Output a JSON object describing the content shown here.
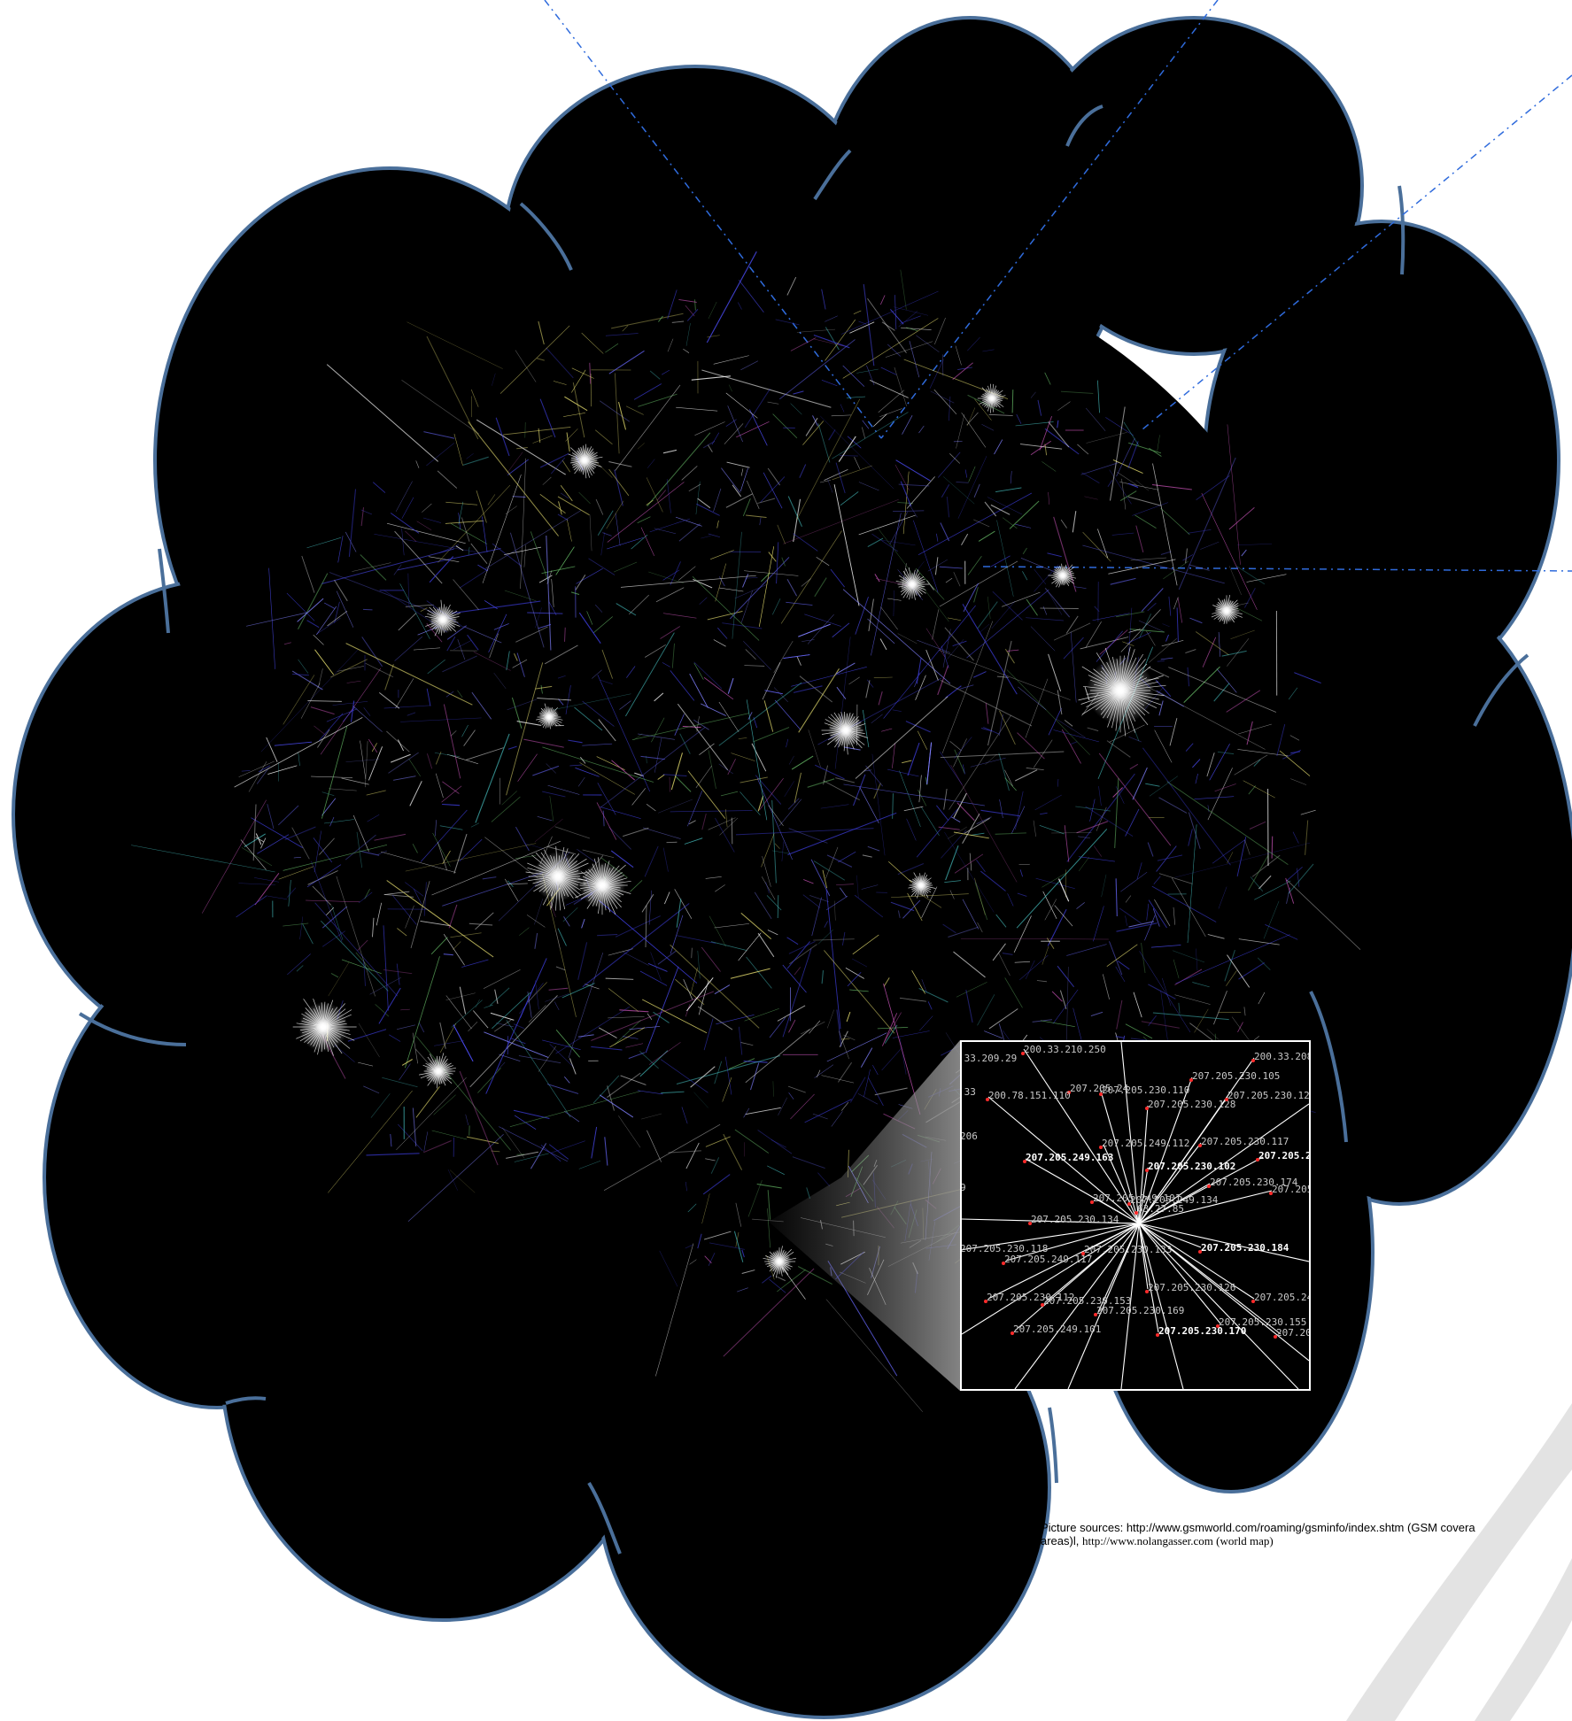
{
  "caption": {
    "prefix": "Picture sources: ",
    "link1": "http://www.gsmworld.com/roaming/gsminfo/index.shtm",
    "desc1": " (GSM covera",
    "line2_start": "areas)l, ",
    "link2": "http://www.nolangasser.com",
    "desc2": " (world map)"
  },
  "zoom_labels": [
    {
      "text": ".33.209.29"
    },
    {
      "text": "200.33.210.250"
    },
    {
      "text": "200.33.208"
    },
    {
      "text": "207.205.230.105"
    },
    {
      "text": "207.205.24"
    },
    {
      "text": "207.205.230.110"
    },
    {
      "text": ".33"
    },
    {
      "text": "200.78.151.110"
    },
    {
      "text": "207.205.230.128"
    },
    {
      "text": "207.205.230.123"
    },
    {
      "text": "206"
    },
    {
      "text": "207.205.230.117"
    },
    {
      "text": "207.205.249.112"
    },
    {
      "text": "207.205.249.163"
    },
    {
      "text": "207.205.230.102"
    },
    {
      "text": "207.205.249"
    },
    {
      "text": "207.205.230.174"
    },
    {
      "text": "207.205"
    },
    {
      "text": "207.205.249.101"
    },
    {
      "text": "207.205.249.134"
    },
    {
      "text": "63.27.85"
    },
    {
      "text": "207.205.230.134"
    },
    {
      "text": "207.205.230.118"
    },
    {
      "text": "207.205.230.133"
    },
    {
      "text": "207.205.230.184"
    },
    {
      "text": "207.205.249.117"
    },
    {
      "text": "207.205.230.112"
    },
    {
      "text": "207.205.230.153"
    },
    {
      "text": "207.205.230.126"
    },
    {
      "text": "207.205.230.169"
    },
    {
      "text": "207.205.24"
    },
    {
      "text": "207.205.230.155"
    },
    {
      "text": "207.205.249.101"
    },
    {
      "text": "207.205.230.170"
    },
    {
      "text": "207.20"
    },
    {
      "text": "9"
    }
  ],
  "colors": {
    "cloud_fill": "#000000",
    "cloud_stroke": "#4a6f9a",
    "dash_line": "#2f6bdc",
    "node_dot": "#ff2a2a",
    "zoom_border": "#ffffff"
  }
}
